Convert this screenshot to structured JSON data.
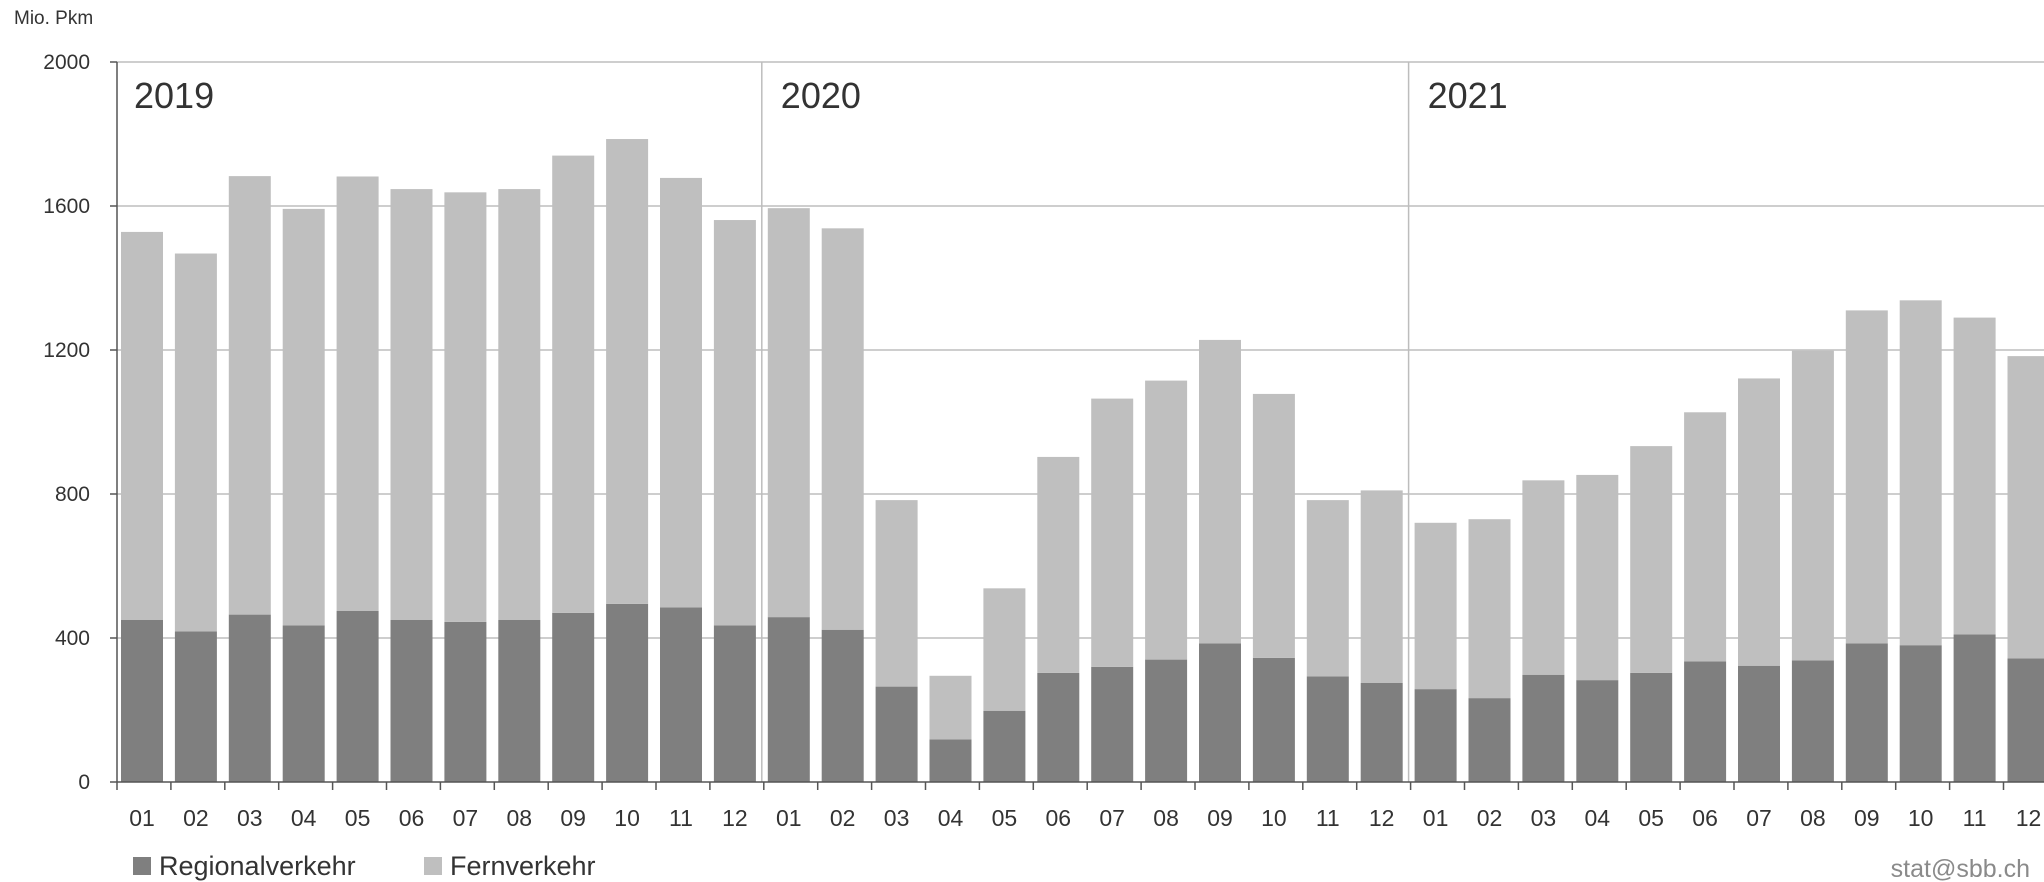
{
  "chart_data": {
    "type": "bar",
    "stacked": true,
    "ylabel": "Mio. Pkm",
    "ylim": [
      0,
      2000
    ],
    "yticks": [
      0,
      400,
      800,
      1200,
      1600,
      2000
    ],
    "grid": true,
    "legend_position": "bottom-left",
    "years": [
      "2019",
      "2020",
      "2021"
    ],
    "categories": [
      "01",
      "02",
      "03",
      "04",
      "05",
      "06",
      "07",
      "08",
      "09",
      "10",
      "11",
      "12",
      "01",
      "02",
      "03",
      "04",
      "05",
      "06",
      "07",
      "08",
      "09",
      "10",
      "11",
      "12",
      "01",
      "02",
      "03",
      "04",
      "05",
      "06",
      "07",
      "08",
      "09",
      "10",
      "11",
      "12"
    ],
    "series": [
      {
        "name": "Regionalverkehr",
        "color": "#7f7f7f",
        "values": [
          450,
          418,
          465,
          435,
          475,
          450,
          445,
          450,
          470,
          495,
          485,
          435,
          458,
          423,
          265,
          118,
          198,
          303,
          320,
          340,
          385,
          345,
          293,
          275,
          258,
          233,
          298,
          283,
          303,
          335,
          323,
          338,
          385,
          380,
          410,
          343
        ]
      },
      {
        "name": "Fernverkehr",
        "color": "#bfbfbf",
        "values": [
          1078,
          1050,
          1218,
          1157,
          1207,
          1197,
          1193,
          1197,
          1270,
          1291,
          1193,
          1126,
          1136,
          1115,
          518,
          177,
          340,
          600,
          745,
          775,
          843,
          733,
          490,
          535,
          462,
          497,
          540,
          570,
          630,
          692,
          798,
          860,
          925,
          958,
          880,
          840
        ]
      }
    ]
  },
  "source": "stat@sbb.ch"
}
